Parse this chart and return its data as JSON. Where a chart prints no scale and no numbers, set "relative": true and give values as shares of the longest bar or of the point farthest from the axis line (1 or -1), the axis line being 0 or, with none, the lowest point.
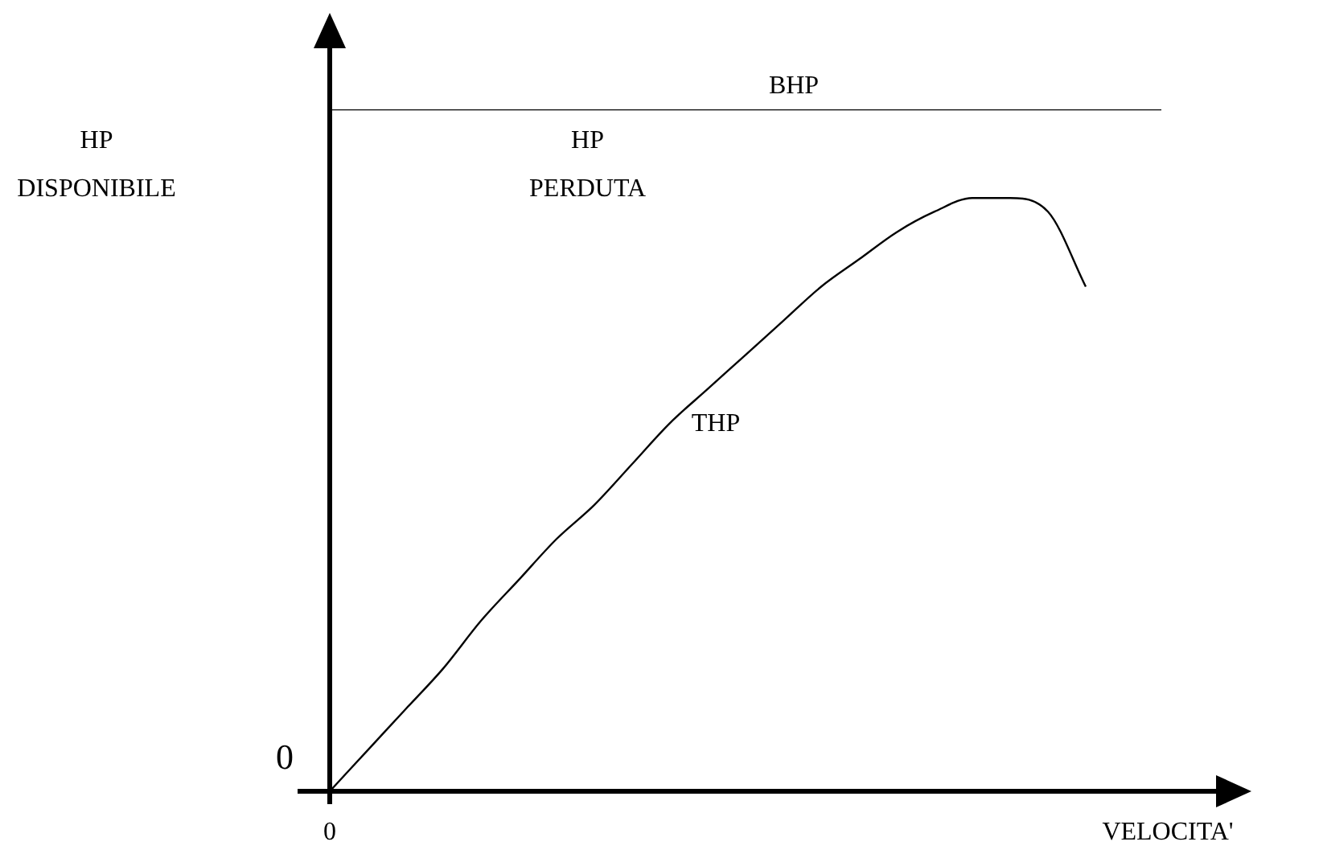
{
  "chart_data": {
    "type": "line",
    "relative": true,
    "xlabel": "VELOCITA'",
    "ylabel": "HP DISPONIBILE",
    "categories": [
      null,
      null,
      null,
      null,
      null,
      null,
      null,
      null,
      null,
      null,
      null,
      null,
      null,
      null,
      null,
      null,
      null,
      null,
      null,
      null,
      null,
      null,
      null
    ],
    "series": [
      {
        "name": "BHP",
        "color": "#000000",
        "values": [
          1,
          1,
          1,
          1,
          1,
          1,
          1,
          1,
          1,
          1,
          1,
          1,
          1,
          1,
          1,
          1,
          1,
          1,
          1,
          1,
          1,
          1,
          1
        ]
      },
      {
        "name": "THP",
        "color": "#000000",
        "values": [
          0,
          0.06,
          0.12,
          0.18,
          0.25,
          0.31,
          0.37,
          0.42,
          0.48,
          0.54,
          0.59,
          0.64,
          0.69,
          0.74,
          0.78,
          0.82,
          0.85,
          0.87,
          0.87,
          0.85,
          0.74,
          null,
          null
        ]
      }
    ],
    "annotations": [
      "HP PERDUTA",
      "0",
      "0"
    ],
    "marker": "none",
    "legend": false
  }
}
